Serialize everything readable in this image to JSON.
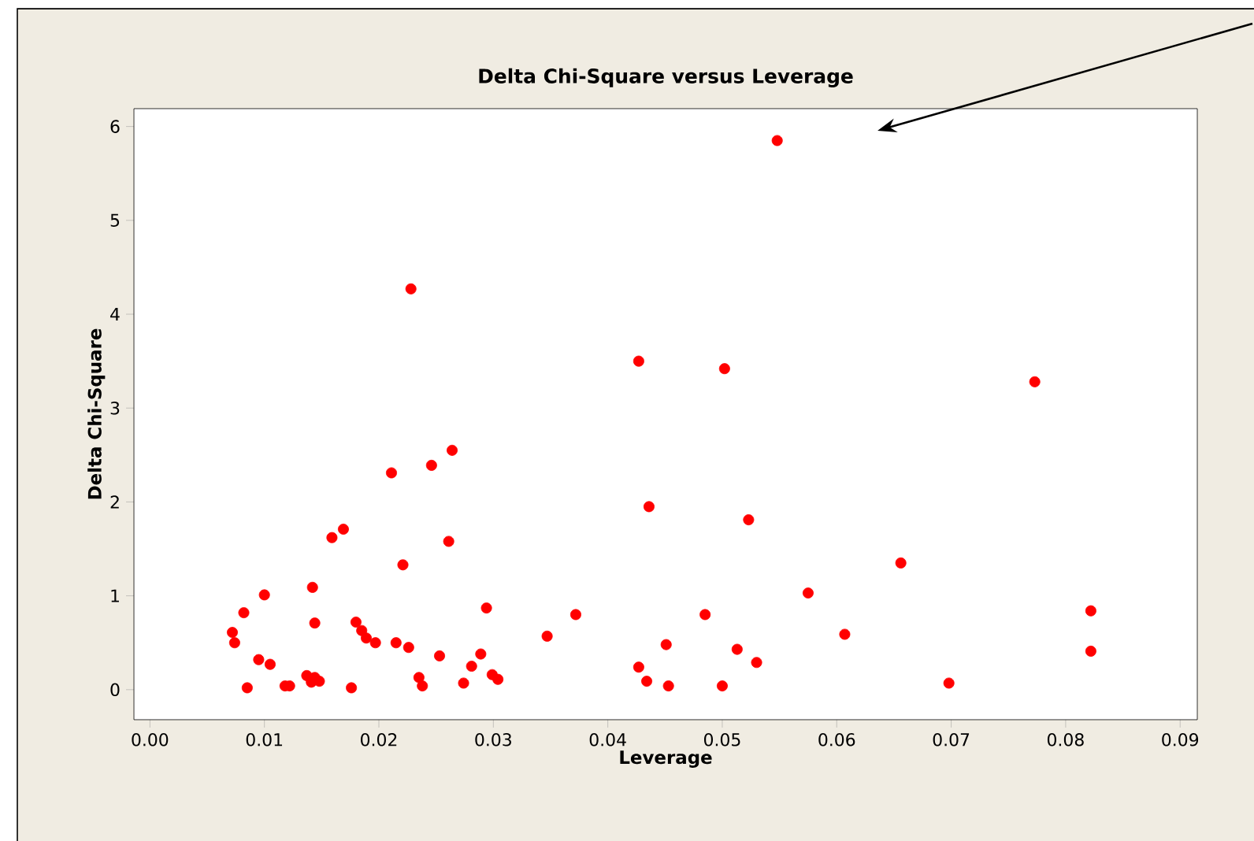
{
  "chart_data": {
    "type": "scatter",
    "title": "Delta Chi-Square versus Leverage",
    "xlabel": "Leverage",
    "ylabel": "Delta Chi-Square",
    "xlim": [
      -0.0014,
      0.0915
    ],
    "ylim": [
      -0.32,
      6.19
    ],
    "xticks": [
      {
        "value": 0,
        "label": "0.00"
      },
      {
        "value": 0.01,
        "label": "0.01"
      },
      {
        "value": 0.02,
        "label": "0.02"
      },
      {
        "value": 0.03,
        "label": "0.03"
      },
      {
        "value": 0.04,
        "label": "0.04"
      },
      {
        "value": 0.05,
        "label": "0.05"
      },
      {
        "value": 0.06,
        "label": "0.06"
      },
      {
        "value": 0.07,
        "label": "0.07"
      },
      {
        "value": 0.08,
        "label": "0.08"
      },
      {
        "value": 0.09,
        "label": "0.09"
      }
    ],
    "yticks": [
      0,
      1,
      2,
      3,
      4,
      5,
      6
    ],
    "marker": "circle",
    "series": [
      {
        "color": "#ff0000",
        "x": [
          0.0072,
          0.0074,
          0.0082,
          0.0085,
          0.0095,
          0.01,
          0.0105,
          0.0118,
          0.0122,
          0.0137,
          0.0142,
          0.0141,
          0.0144,
          0.0144,
          0.0148,
          0.0159,
          0.0169,
          0.0176,
          0.018,
          0.0185,
          0.0189,
          0.0197,
          0.0211,
          0.0215,
          0.0221,
          0.0226,
          0.0228,
          0.0235,
          0.0238,
          0.0246,
          0.0253,
          0.0261,
          0.0264,
          0.0274,
          0.0281,
          0.0289,
          0.0294,
          0.0299,
          0.0304,
          0.0347,
          0.0372,
          0.0427,
          0.0427,
          0.0434,
          0.0436,
          0.0451,
          0.0453,
          0.0485,
          0.05,
          0.0502,
          0.0513,
          0.0523,
          0.053,
          0.0548,
          0.0575,
          0.0607,
          0.0656,
          0.0698,
          0.0773,
          0.0822,
          0.0822
        ],
        "values": [
          0.61,
          0.5,
          0.82,
          0.02,
          0.32,
          1.01,
          0.27,
          0.04,
          0.04,
          0.15,
          1.09,
          0.08,
          0.71,
          0.13,
          0.09,
          1.62,
          1.71,
          0.02,
          0.72,
          0.63,
          0.55,
          0.5,
          2.31,
          0.5,
          1.33,
          0.45,
          4.27,
          0.13,
          0.04,
          2.39,
          0.36,
          1.58,
          2.55,
          0.07,
          0.25,
          0.38,
          0.87,
          0.16,
          0.11,
          0.57,
          0.8,
          3.5,
          0.24,
          0.09,
          1.95,
          0.48,
          0.04,
          0.8,
          0.04,
          3.42,
          0.43,
          1.81,
          0.29,
          5.85,
          1.03,
          0.59,
          1.35,
          0.07,
          3.28,
          0.84,
          0.41
        ]
      }
    ]
  }
}
